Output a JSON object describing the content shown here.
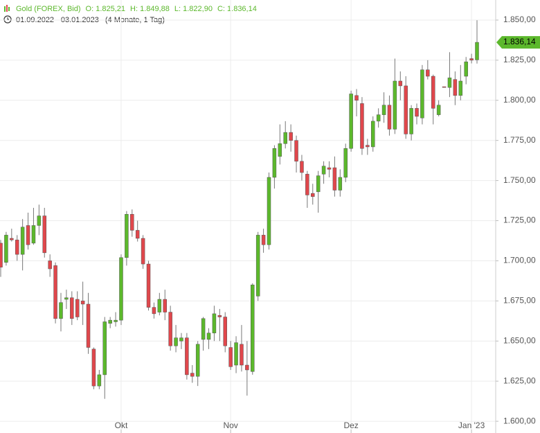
{
  "chart_data": {
    "type": "candlestick",
    "title": "Gold (FOREX, Bid)",
    "ohlc_labels": [
      "O: 1.825,21",
      "H: 1.849,88",
      "L: 1.822,90",
      "C: 1.836,14"
    ],
    "period": "01.09.2022 - 03.01.2023",
    "duration": "(4 Monate, 1 Tag)",
    "categories": [
      null,
      null,
      null,
      null,
      null,
      null,
      null,
      null,
      null,
      null,
      null,
      null,
      null,
      null,
      null,
      null,
      null,
      null,
      null,
      null,
      null,
      null,
      "Okt",
      null,
      null,
      null,
      null,
      null,
      null,
      null,
      null,
      null,
      null,
      null,
      null,
      null,
      null,
      null,
      null,
      null,
      null,
      null,
      "Nov",
      null,
      null,
      null,
      null,
      null,
      null,
      null,
      null,
      null,
      null,
      null,
      null,
      null,
      null,
      null,
      null,
      null,
      null,
      null,
      null,
      null,
      "Dez",
      null,
      null,
      null,
      null,
      null,
      null,
      null,
      null,
      null,
      null,
      null,
      null,
      null,
      null,
      null,
      null,
      null,
      null,
      null,
      null,
      null,
      "Jan '23",
      null
    ],
    "open": [
      1711,
      1699,
      1714,
      1713,
      1704,
      1722,
      1711,
      1722,
      1728,
      1700,
      1697,
      1664,
      1676,
      1677,
      1676,
      1675,
      1673,
      1645,
      1622,
      1629,
      1661,
      1662,
      1663,
      1702,
      1729,
      1719,
      1714,
      1698,
      1671,
      1668,
      1676,
      1668,
      1647,
      1650,
      1652,
      1630,
      1628,
      1651,
      1651,
      1655,
      1666,
      1665,
      1646,
      1635,
      1648,
      1635,
      1631,
      1678,
      1716,
      1710,
      1752,
      1765,
      1773,
      1780,
      1775,
      1762,
      1754,
      1742,
      1743,
      1754,
      1758,
      1758,
      1744,
      1752,
      1770,
      1803,
      1798,
      1772,
      1771,
      1787,
      1791,
      1797,
      1782,
      1812,
      1809,
      1779,
      1795,
      1789,
      1819,
      1815,
      1791,
      1808.5,
      1808,
      1813,
      1803,
      1815,
      1826,
      1825.21
    ],
    "high": [
      1713,
      1718,
      1720,
      1716,
      1726,
      1730,
      1733,
      1735,
      1733,
      1704,
      1699,
      1680,
      1682,
      1681,
      1681,
      1687,
      1680,
      1646,
      1632,
      1665,
      1665,
      1668,
      1704,
      1731,
      1732,
      1725,
      1716,
      1700,
      1674,
      1680,
      1682,
      1672,
      1660,
      1655,
      1655,
      1635,
      1650,
      1665,
      1658,
      1672,
      1670,
      1668,
      1650,
      1653,
      1660,
      1650,
      1686,
      1718,
      1720,
      1755,
      1772,
      1785,
      1787,
      1785,
      1778,
      1766,
      1756,
      1748,
      1756,
      1762,
      1762,
      1765,
      1757,
      1773,
      1806,
      1807,
      1802,
      1776,
      1790,
      1795,
      1805,
      1803,
      1826,
      1818,
      1815,
      1797,
      1798,
      1822,
      1825,
      1816,
      1800,
      1808.5,
      1830,
      1818,
      1822,
      1827,
      1829,
      1849.88
    ],
    "low": [
      1690,
      1697,
      1712,
      1700,
      1694,
      1707,
      1710,
      1716,
      1702,
      1690,
      1661,
      1656,
      1670,
      1660,
      1663,
      1660,
      1642,
      1620,
      1620,
      1614,
      1658,
      1659,
      1660,
      1697,
      1715,
      1712,
      1695,
      1669,
      1664,
      1666,
      1663,
      1644,
      1643,
      1645,
      1626,
      1624,
      1622,
      1644,
      1645,
      1650,
      1650,
      1643,
      1632,
      1630,
      1631,
      1616,
      1629,
      1675,
      1705,
      1707,
      1745,
      1760,
      1770,
      1768,
      1755,
      1750,
      1733,
      1735,
      1730,
      1748,
      1752,
      1740,
      1740,
      1749,
      1768,
      1790,
      1766,
      1766,
      1768,
      1783,
      1786,
      1778,
      1779,
      1800,
      1776,
      1775,
      1785,
      1785,
      1813,
      1785,
      1790,
      1808,
      1802,
      1797,
      1800,
      1810,
      1823,
      1822.9
    ],
    "close": [
      1696,
      1716,
      1713,
      1704,
      1721,
      1710,
      1722,
      1728,
      1705,
      1695,
      1664,
      1674,
      1677,
      1664,
      1665,
      1673,
      1646,
      1622,
      1629,
      1662,
      1663,
      1663,
      1702,
      1729,
      1719,
      1714,
      1698,
      1671,
      1667,
      1676,
      1668,
      1647,
      1652,
      1652,
      1629,
      1628,
      1648,
      1664,
      1655,
      1667,
      1665,
      1647,
      1634,
      1649,
      1635,
      1632,
      1685,
      1716,
      1710,
      1752,
      1770,
      1773,
      1780,
      1775,
      1762,
      1755,
      1741,
      1740,
      1753,
      1759,
      1757,
      1744,
      1752,
      1770,
      1804,
      1800,
      1770,
      1771,
      1787,
      1791,
      1797,
      1782,
      1812,
      1809,
      1779,
      1795,
      1790,
      1819,
      1815,
      1795,
      1797,
      1808,
      1814,
      1803,
      1812,
      1824,
      1825,
      1836.14
    ],
    "up_color": "#5cb82c",
    "down_color": "#e0474c",
    "current_price": {
      "value": 1836.14,
      "label": "1.836,14"
    },
    "ylim": [
      1592.7,
      1862.5
    ],
    "yticks": [
      {
        "value": 1600,
        "label": "1.600,00"
      },
      {
        "value": 1625,
        "label": "1.625,00"
      },
      {
        "value": 1650,
        "label": "1.650,00"
      },
      {
        "value": 1675,
        "label": "1.675,00"
      },
      {
        "value": 1700,
        "label": "1.700,00"
      },
      {
        "value": 1725,
        "label": "1.725,00"
      },
      {
        "value": 1750,
        "label": "1.750,00"
      },
      {
        "value": 1775,
        "label": "1.775,00"
      },
      {
        "value": 1800,
        "label": "1.800,00"
      },
      {
        "value": 1825,
        "label": "1.825,00"
      },
      {
        "value": 1850,
        "label": "1.850,00"
      }
    ],
    "grid": true
  }
}
